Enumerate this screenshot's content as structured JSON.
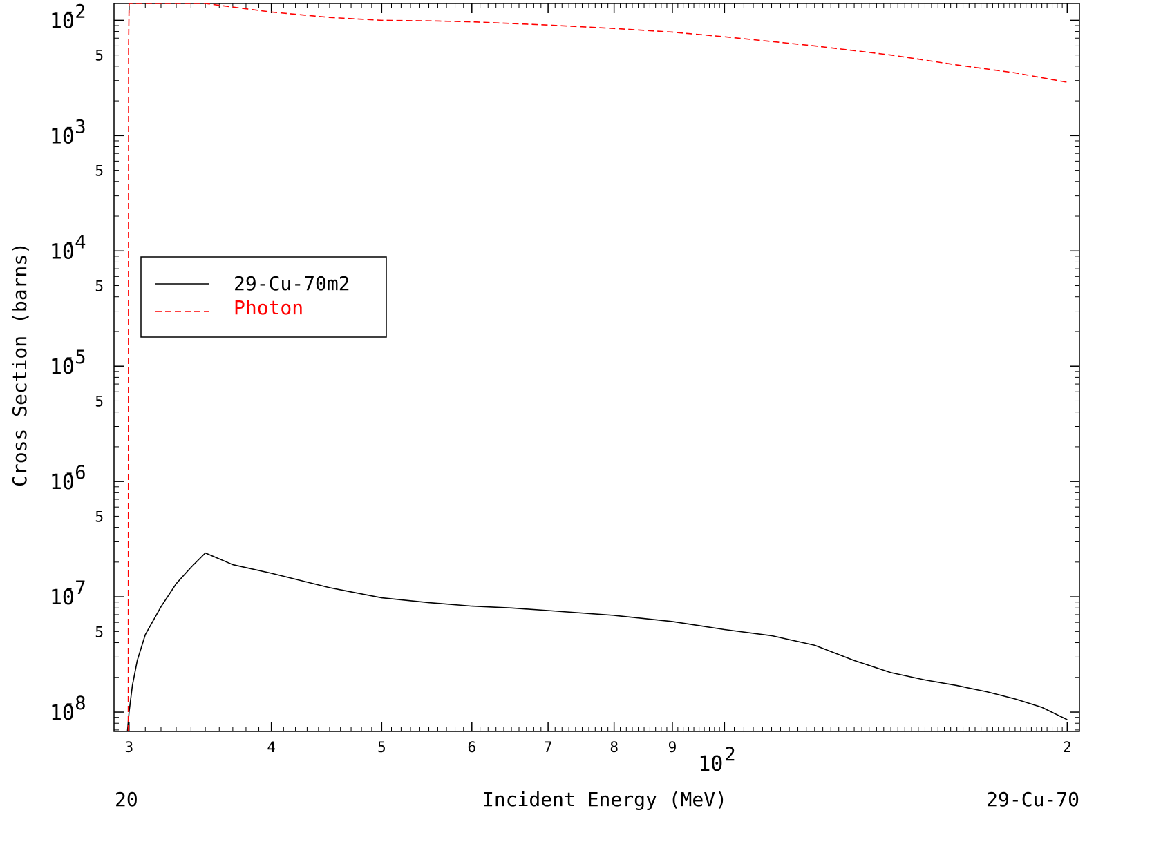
{
  "chart_data": {
    "type": "line",
    "xlabel": "Incident Energy (MeV)",
    "ylabel": "Cross Section (barns)",
    "xscale": "log",
    "yscale": "log",
    "xlim": [
      29.1,
      205
    ],
    "ylim": [
      6.8e-09,
      0.014
    ],
    "grid": false,
    "legend_position": "left-middle",
    "corner_left_text": "20",
    "corner_right_text": "29-Cu-70",
    "x_ticks": [
      {
        "value": 30,
        "label": "3"
      },
      {
        "value": 40,
        "label": "4"
      },
      {
        "value": 50,
        "label": "5"
      },
      {
        "value": 60,
        "label": "6"
      },
      {
        "value": 70,
        "label": "7"
      },
      {
        "value": 80,
        "label": "8"
      },
      {
        "value": 90,
        "label": "9"
      },
      {
        "value": 200,
        "label": "2"
      }
    ],
    "x_decade_label": {
      "value": 100,
      "base": "10",
      "exp": "2"
    },
    "y_decades": [
      {
        "value": 0.01,
        "base": "10",
        "exp": "-2"
      },
      {
        "value": 0.001,
        "base": "10",
        "exp": "-3"
      },
      {
        "value": 0.0001,
        "base": "10",
        "exp": "-4"
      },
      {
        "value": 1e-05,
        "base": "10",
        "exp": "-5"
      },
      {
        "value": 1e-06,
        "base": "10",
        "exp": "-6"
      },
      {
        "value": 1e-07,
        "base": "10",
        "exp": "-7"
      },
      {
        "value": 1e-08,
        "base": "10",
        "exp": "-8"
      }
    ],
    "y_fives": [
      {
        "value": 0.005,
        "label": "5"
      },
      {
        "value": 0.0005,
        "label": "5"
      },
      {
        "value": 5e-05,
        "label": "5"
      },
      {
        "value": 5e-06,
        "label": "5"
      },
      {
        "value": 5e-07,
        "label": "5"
      },
      {
        "value": 5e-08,
        "label": "5"
      }
    ],
    "series": [
      {
        "name": "29-Cu-70m2",
        "color": "#000000",
        "dash": "solid",
        "x": [
          29.9,
          30.0,
          30.2,
          30.5,
          31.0,
          32.0,
          33.0,
          34.0,
          35.0,
          37.0,
          40.0,
          45.0,
          50.0,
          55.0,
          60.0,
          65.0,
          70.0,
          80.0,
          90.0,
          100.0,
          110.0,
          120.0,
          130.0,
          140.0,
          150.0,
          160.0,
          170.0,
          180.0,
          190.0,
          200.0
        ],
        "y": [
          6.8e-09,
          1e-08,
          1.7e-08,
          2.8e-08,
          4.7e-08,
          8.2e-08,
          1.3e-07,
          1.8e-07,
          2.4e-07,
          1.9e-07,
          1.6e-07,
          1.2e-07,
          9.8e-08,
          8.9e-08,
          8.3e-08,
          8e-08,
          7.6e-08,
          6.9e-08,
          6.1e-08,
          5.2e-08,
          4.6e-08,
          3.8e-08,
          2.8e-08,
          2.2e-08,
          1.9e-08,
          1.7e-08,
          1.5e-08,
          1.3e-08,
          1.1e-08,
          8.6e-09
        ]
      },
      {
        "name": "Photon",
        "color": "#ff0000",
        "dash": "dashed",
        "x": [
          29.95,
          29.97,
          30.0,
          35.0,
          40.0,
          45.0,
          50.0,
          55.0,
          60.0,
          70.0,
          80.0,
          90.0,
          100.0,
          120.0,
          140.0,
          160.0,
          180.0,
          200.0
        ],
        "y": [
          6.8e-09,
          0.006,
          0.0141,
          0.014,
          0.0118,
          0.0106,
          0.01,
          0.0099,
          0.0097,
          0.0091,
          0.0085,
          0.0079,
          0.0072,
          0.006,
          0.005,
          0.0041,
          0.0035,
          0.0029
        ]
      }
    ]
  }
}
